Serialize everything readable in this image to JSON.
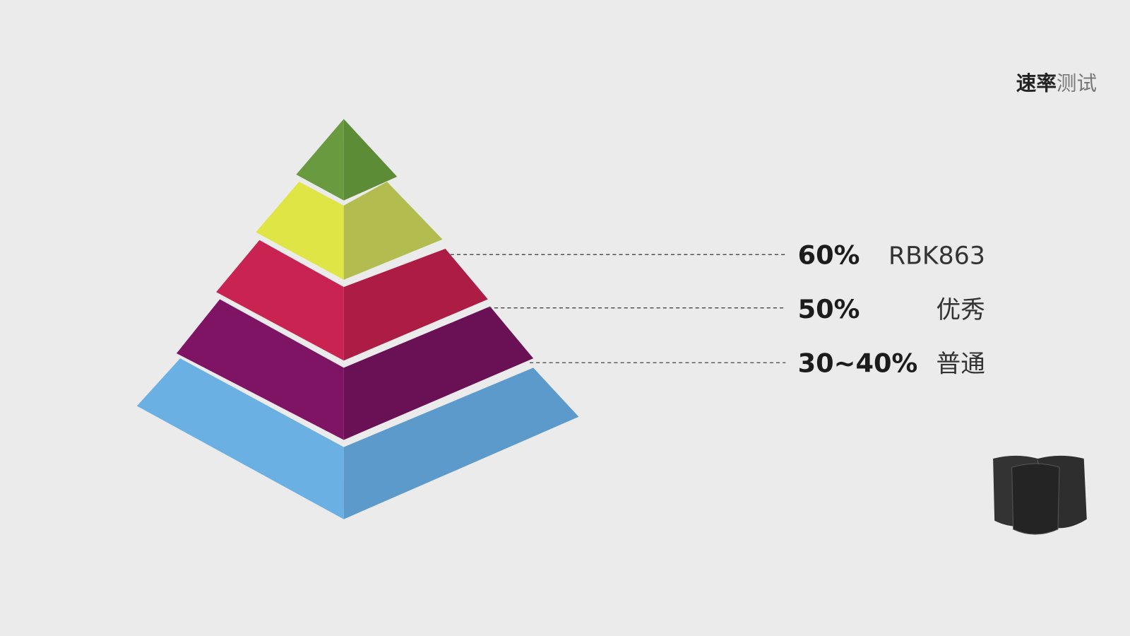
{
  "header": {
    "title_bold": "速率",
    "title_light": "测试"
  },
  "levels": [
    {
      "percent": "60%",
      "label": "RBK863"
    },
    {
      "percent": "50%",
      "label": "优秀"
    },
    {
      "percent": "30~40%",
      "label": "普通"
    }
  ]
}
